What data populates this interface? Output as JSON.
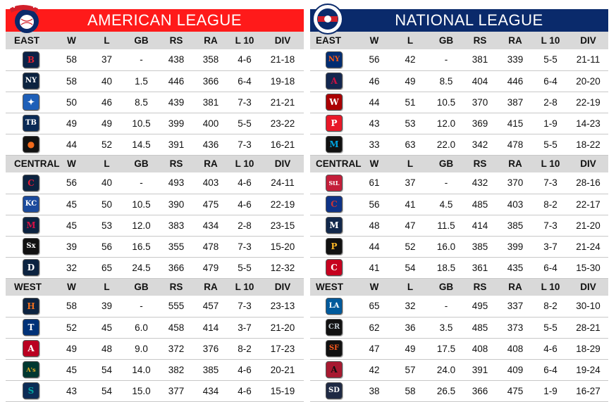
{
  "columns": [
    "W",
    "L",
    "GB",
    "RS",
    "RA",
    "L 10",
    "DIV"
  ],
  "leagues": [
    {
      "title": "AMERICAN LEAGUE",
      "logo_icon": "american-league-logo",
      "divisions": [
        {
          "name": "EAST",
          "teams": [
            {
              "icon": "red-sox-logo",
              "glyph": "B",
              "bg": "#0b2247",
              "fg": "#e0202f",
              "w": 58,
              "l": 37,
              "gb": "-",
              "rs": 438,
              "ra": 358,
              "l10": "4-6",
              "div": "21-18"
            },
            {
              "icon": "yankees-logo",
              "glyph": "NY",
              "bg": "#0c2340",
              "fg": "#ffffff",
              "w": 58,
              "l": 40,
              "gb": "1.5",
              "rs": 446,
              "ra": 366,
              "l10": "6-4",
              "div": "19-18"
            },
            {
              "icon": "blue-jays-logo",
              "glyph": "✦",
              "bg": "#1e5fb8",
              "fg": "#ffffff",
              "w": 50,
              "l": 46,
              "gb": "8.5",
              "rs": 439,
              "ra": 381,
              "l10": "7-3",
              "div": "21-21"
            },
            {
              "icon": "rays-logo",
              "glyph": "TB",
              "bg": "#0a2a55",
              "fg": "#ffffff",
              "w": 49,
              "l": 49,
              "gb": "10.5",
              "rs": 399,
              "ra": 400,
              "l10": "5-5",
              "div": "23-22"
            },
            {
              "icon": "orioles-logo",
              "glyph": "●",
              "bg": "#111111",
              "fg": "#f26a1b",
              "w": 44,
              "l": 52,
              "gb": "14.5",
              "rs": 391,
              "ra": 436,
              "l10": "7-3",
              "div": "16-21"
            }
          ]
        },
        {
          "name": "CENTRAL",
          "teams": [
            {
              "icon": "indians-logo",
              "glyph": "C",
              "bg": "#0c2340",
              "fg": "#e31937",
              "w": 56,
              "l": 40,
              "gb": "-",
              "rs": 493,
              "ra": 403,
              "l10": "4-6",
              "div": "24-11"
            },
            {
              "icon": "royals-logo",
              "glyph": "KC",
              "bg": "#1b4a9c",
              "fg": "#ffffff",
              "w": 45,
              "l": 50,
              "gb": "10.5",
              "rs": 390,
              "ra": 475,
              "l10": "4-6",
              "div": "22-19"
            },
            {
              "icon": "twins-logo",
              "glyph": "M",
              "bg": "#0c2340",
              "fg": "#d31145",
              "w": 45,
              "l": 53,
              "gb": "12.0",
              "rs": 383,
              "ra": 434,
              "l10": "2-8",
              "div": "23-15"
            },
            {
              "icon": "white-sox-logo",
              "glyph": "Sx",
              "bg": "#111111",
              "fg": "#ffffff",
              "w": 39,
              "l": 56,
              "gb": "16.5",
              "rs": 355,
              "ra": 478,
              "l10": "7-3",
              "div": "15-20"
            },
            {
              "icon": "tigers-logo",
              "glyph": "D",
              "bg": "#0c2340",
              "fg": "#ffffff",
              "w": 32,
              "l": 65,
              "gb": "24.5",
              "rs": 366,
              "ra": 479,
              "l10": "5-5",
              "div": "12-32"
            }
          ]
        },
        {
          "name": "WEST",
          "teams": [
            {
              "icon": "astros-logo",
              "glyph": "H",
              "bg": "#0c2340",
              "fg": "#eb6e1f",
              "w": 58,
              "l": 39,
              "gb": "-",
              "rs": 555,
              "ra": 457,
              "l10": "7-3",
              "div": "23-13"
            },
            {
              "icon": "rangers-logo",
              "glyph": "T",
              "bg": "#003278",
              "fg": "#ffffff",
              "w": 52,
              "l": 45,
              "gb": "6.0",
              "rs": 458,
              "ra": 414,
              "l10": "3-7",
              "div": "21-20"
            },
            {
              "icon": "angels-logo",
              "glyph": "A",
              "bg": "#ba0021",
              "fg": "#ffffff",
              "w": 49,
              "l": 48,
              "gb": "9.0",
              "rs": 372,
              "ra": 376,
              "l10": "8-2",
              "div": "17-23"
            },
            {
              "icon": "athletics-logo",
              "glyph": "A's",
              "bg": "#003831",
              "fg": "#efb21e",
              "w": 45,
              "l": 54,
              "gb": "14.0",
              "rs": 382,
              "ra": 385,
              "l10": "4-6",
              "div": "20-21"
            },
            {
              "icon": "mariners-logo",
              "glyph": "S",
              "bg": "#0c2c56",
              "fg": "#00a5a0",
              "w": 43,
              "l": 54,
              "gb": "15.0",
              "rs": 377,
              "ra": 434,
              "l10": "4-6",
              "div": "15-19"
            }
          ]
        }
      ]
    },
    {
      "title": "NATIONAL LEAGUE",
      "logo_icon": "national-league-logo",
      "divisions": [
        {
          "name": "EAST",
          "teams": [
            {
              "icon": "mets-logo",
              "glyph": "NY",
              "bg": "#002d72",
              "fg": "#ff5910",
              "w": 56,
              "l": 42,
              "gb": "-",
              "rs": 381,
              "ra": 339,
              "l10": "5-5",
              "div": "21-11"
            },
            {
              "icon": "braves-logo",
              "glyph": "A",
              "bg": "#13274f",
              "fg": "#ce1141",
              "w": 46,
              "l": 49,
              "gb": "8.5",
              "rs": 404,
              "ra": 446,
              "l10": "6-4",
              "div": "20-20"
            },
            {
              "icon": "nationals-logo",
              "glyph": "W",
              "bg": "#ab0003",
              "fg": "#ffffff",
              "w": 44,
              "l": 51,
              "gb": "10.5",
              "rs": 370,
              "ra": 387,
              "l10": "2-8",
              "div": "22-19"
            },
            {
              "icon": "phillies-logo",
              "glyph": "P",
              "bg": "#e81828",
              "fg": "#ffffff",
              "w": 43,
              "l": 53,
              "gb": "12.0",
              "rs": 369,
              "ra": 415,
              "l10": "1-9",
              "div": "14-23"
            },
            {
              "icon": "marlins-logo",
              "glyph": "M",
              "bg": "#111111",
              "fg": "#00a3e0",
              "w": 33,
              "l": 63,
              "gb": "22.0",
              "rs": 342,
              "ra": 478,
              "l10": "5-5",
              "div": "18-22"
            }
          ]
        },
        {
          "name": "CENTRAL",
          "teams": [
            {
              "icon": "cardinals-logo",
              "glyph": "StL",
              "bg": "#c41e3a",
              "fg": "#ffffff",
              "w": 61,
              "l": 37,
              "gb": "-",
              "rs": 432,
              "ra": 370,
              "l10": "7-3",
              "div": "28-16"
            },
            {
              "icon": "cubs-logo",
              "glyph": "C",
              "bg": "#0e3386",
              "fg": "#cc3433",
              "w": 56,
              "l": 41,
              "gb": "4.5",
              "rs": 485,
              "ra": 403,
              "l10": "8-2",
              "div": "22-17"
            },
            {
              "icon": "brewers-logo",
              "glyph": "M",
              "bg": "#12284b",
              "fg": "#ffffff",
              "w": 48,
              "l": 47,
              "gb": "11.5",
              "rs": 414,
              "ra": 385,
              "l10": "7-3",
              "div": "21-20"
            },
            {
              "icon": "pirates-logo",
              "glyph": "P",
              "bg": "#111111",
              "fg": "#fdb827",
              "w": 44,
              "l": 52,
              "gb": "16.0",
              "rs": 385,
              "ra": 399,
              "l10": "3-7",
              "div": "21-24"
            },
            {
              "icon": "reds-logo",
              "glyph": "C",
              "bg": "#c6011f",
              "fg": "#ffffff",
              "w": 41,
              "l": 54,
              "gb": "18.5",
              "rs": 361,
              "ra": 435,
              "l10": "6-4",
              "div": "15-30"
            }
          ]
        },
        {
          "name": "WEST",
          "teams": [
            {
              "icon": "dodgers-logo",
              "glyph": "LA",
              "bg": "#005a9c",
              "fg": "#ffffff",
              "w": 65,
              "l": 32,
              "gb": "-",
              "rs": 495,
              "ra": 337,
              "l10": "8-2",
              "div": "30-10"
            },
            {
              "icon": "rockies-logo",
              "glyph": "CR",
              "bg": "#111111",
              "fg": "#c4ced4",
              "w": 62,
              "l": 36,
              "gb": "3.5",
              "rs": 485,
              "ra": 373,
              "l10": "5-5",
              "div": "28-21"
            },
            {
              "icon": "giants-logo",
              "glyph": "SF",
              "bg": "#111111",
              "fg": "#fd5a1e",
              "w": 47,
              "l": 49,
              "gb": "17.5",
              "rs": 408,
              "ra": 408,
              "l10": "4-6",
              "div": "18-29"
            },
            {
              "icon": "diamondbacks-logo",
              "glyph": "A",
              "bg": "#a71930",
              "fg": "#111111",
              "w": 42,
              "l": 57,
              "gb": "24.0",
              "rs": 391,
              "ra": 409,
              "l10": "6-4",
              "div": "19-24"
            },
            {
              "icon": "padres-logo",
              "glyph": "SD",
              "bg": "#1f2a44",
              "fg": "#ffffff",
              "w": 38,
              "l": 58,
              "gb": "26.5",
              "rs": 366,
              "ra": 475,
              "l10": "1-9",
              "div": "16-27"
            }
          ]
        }
      ]
    }
  ]
}
